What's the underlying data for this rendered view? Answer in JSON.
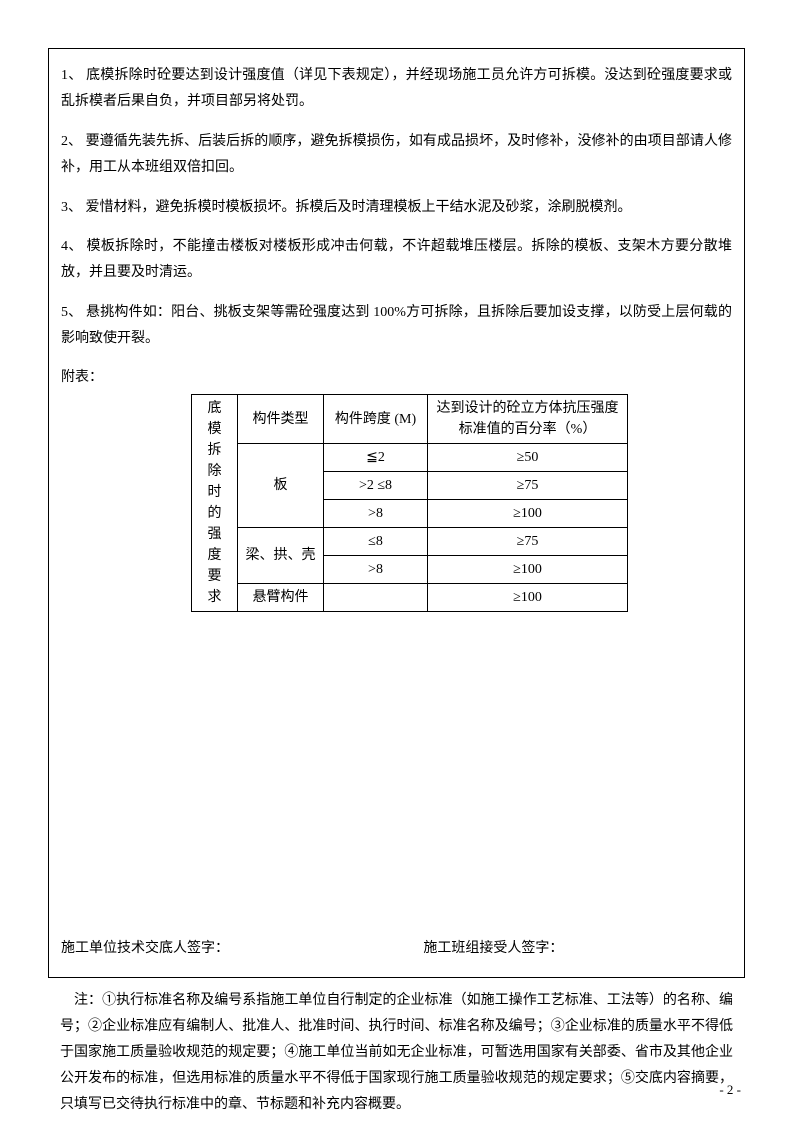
{
  "paragraphs": {
    "p1": "1、 底模拆除时砼要达到设计强度值（详见下表规定），并经现场施工员允许方可拆模。没达到砼强度要求或乱拆模者后果自负，并项目部另将处罚。",
    "p2": "2、  要遵循先装先拆、后装后拆的顺序，避免拆模损伤，如有成品损坏，及时修补，没修补的由项目部请人修补，用工从本班组双倍扣回。",
    "p3": "3、 爱惜材料，避免拆模时模板损坏。拆模后及时清理模板上干结水泥及砂浆，涂刷脱模剂。",
    "p4": "4、 模板拆除时，不能撞击楼板对楼板形成冲击何载，不许超载堆压楼层。拆除的模板、支架木方要分散堆放，并且要及时清运。",
    "p5": "5、  悬挑构件如：阳台、挑板支架等需砼强度达到 100%方可拆除，且拆除后要加设支撑，以防受上层何载的影响致使开裂。"
  },
  "attach_label": "附表：",
  "table": {
    "side_label": "底模拆除时的强度要求",
    "header": {
      "type": "构件类型",
      "span": "构件跨度 (M)",
      "pct": "达到设计的砼立方体抗压强度标准值的百分率（%）"
    },
    "rows": [
      {
        "type": "板",
        "span": "≦2",
        "pct": "≥50"
      },
      {
        "type": "",
        "span": ">2   ≤8",
        "pct": "≥75"
      },
      {
        "type": "",
        "span": ">8",
        "pct": "≥100"
      },
      {
        "type": "梁、拱、壳",
        "span": "≤8",
        "pct": "≥75"
      },
      {
        "type": "",
        "span": ">8",
        "pct": "≥100"
      },
      {
        "type": "悬臂构件",
        "span": "",
        "pct": "≥100"
      }
    ]
  },
  "signatures": {
    "left": "施工单位技术交底人签字：",
    "right": "施工班组接受人签字："
  },
  "notes": "　注：①执行标准名称及编号系指施工单位自行制定的企业标准（如施工操作工艺标准、工法等）的名称、编号；②企业标准应有编制人、批准人、批准时间、执行时间、标准名称及编号；③企业标准的质量水平不得低于国家施工质量验收规范的规定要；④施工单位当前如无企业标准，可暂选用国家有关部委、省市及其他企业公开发布的标准，但选用标准的质量水平不得低于国家现行施工质量验收规范的规定要求；⑤交底内容摘要，只填写已交待执行标准中的章、节标题和补充内容概要。",
  "page_number": "- 2 -"
}
